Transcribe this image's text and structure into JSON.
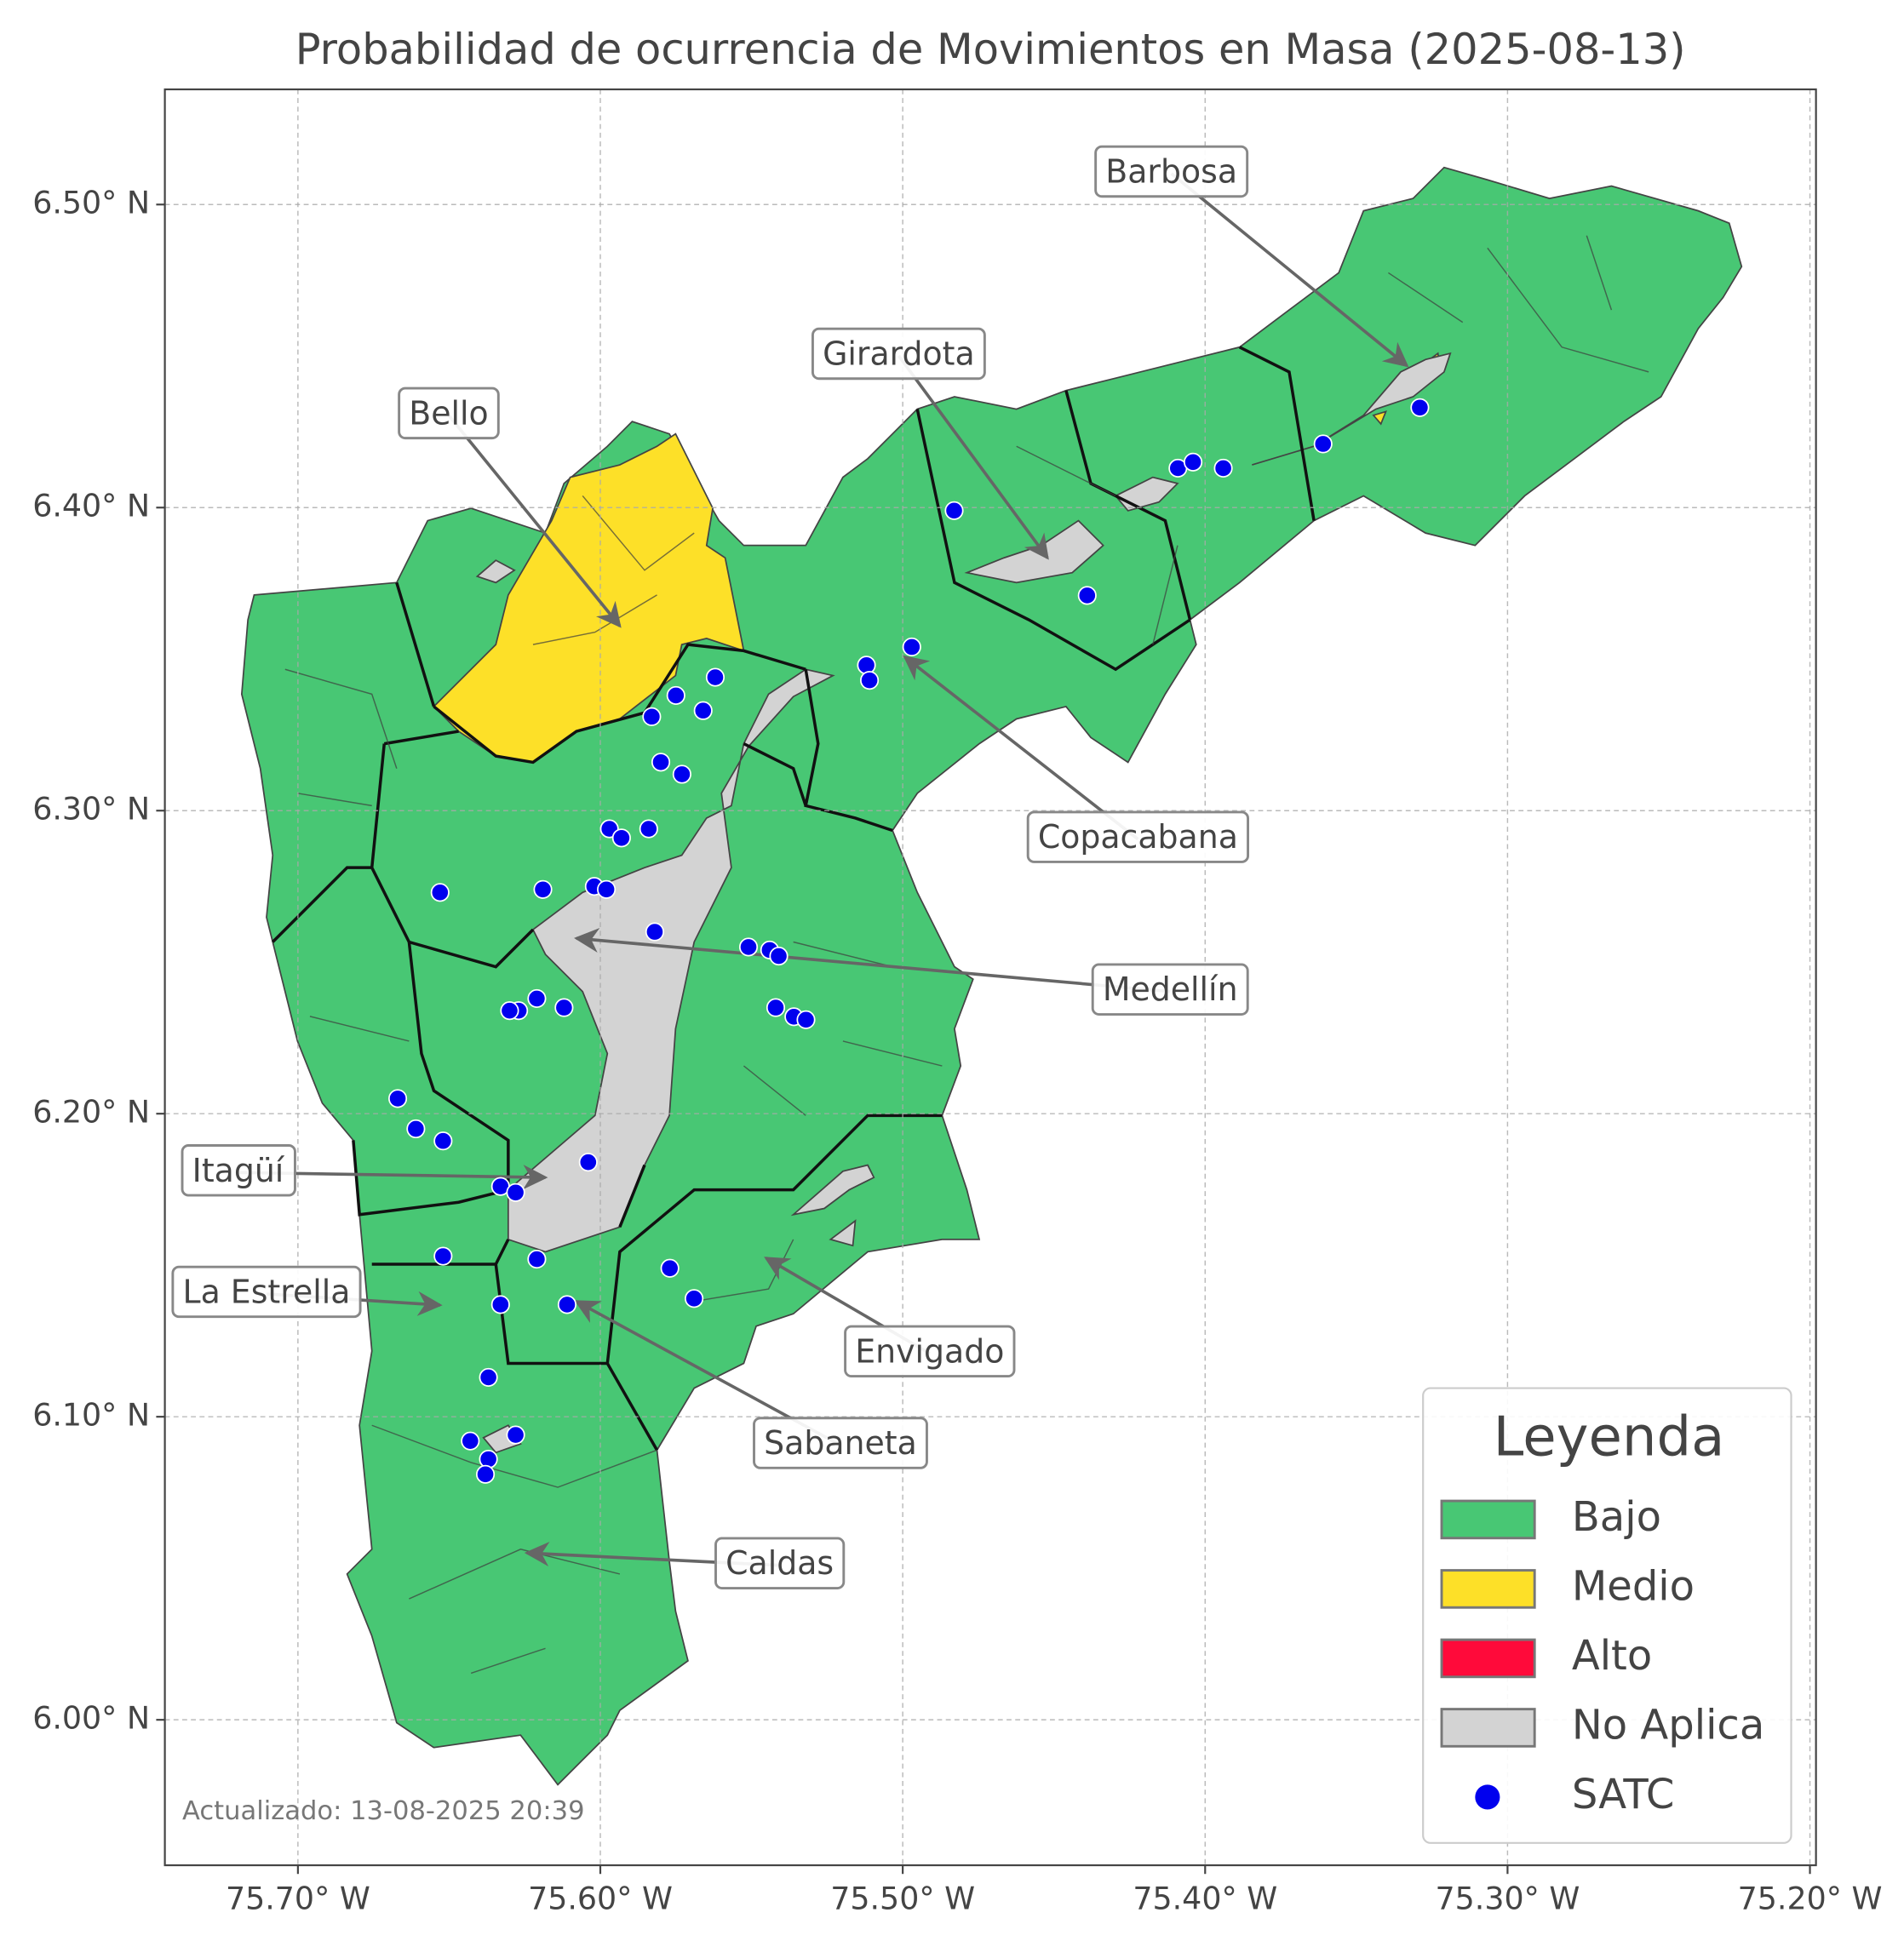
{
  "chart_data": {
    "type": "map",
    "title": "Probabilidad de ocurrencia de Movimientos en Masa (2025-08-13)",
    "xlim": [
      -75.744,
      -75.198
    ],
    "ylim": [
      5.952,
      6.538
    ],
    "xticks": [
      {
        "value": -75.7,
        "label": "75.70° W"
      },
      {
        "value": -75.6,
        "label": "75.60° W"
      },
      {
        "value": -75.5,
        "label": "75.50° W"
      },
      {
        "value": -75.4,
        "label": "75.40° W"
      },
      {
        "value": -75.3,
        "label": "75.30° W"
      },
      {
        "value": -75.2,
        "label": "75.20° W"
      }
    ],
    "yticks": [
      {
        "value": 6.0,
        "label": "6.00° N"
      },
      {
        "value": 6.1,
        "label": "6.10° N"
      },
      {
        "value": 6.2,
        "label": "6.20° N"
      },
      {
        "value": 6.3,
        "label": "6.30° N"
      },
      {
        "value": 6.4,
        "label": "6.40° N"
      },
      {
        "value": 6.5,
        "label": "6.50° N"
      }
    ],
    "grid": true,
    "legend": {
      "title": "Leyenda",
      "position": "lower right",
      "items": [
        {
          "name": "Bajo",
          "color": "#48c774"
        },
        {
          "name": "Medio",
          "color": "#fde028"
        },
        {
          "name": "Alto",
          "color": "#ff0a3a"
        },
        {
          "name": "No Aplica",
          "color": "#d3d3d3"
        }
      ]
    },
    "series": [
      {
        "name": "SATC",
        "color": "#0000ee",
        "x": [
          -75.483,
          -75.439,
          -75.409,
          -75.404,
          -75.394,
          -75.361,
          -75.329,
          -75.512,
          -75.511,
          -75.497,
          -75.562,
          -75.575,
          -75.566,
          -75.583,
          -75.58,
          -75.573,
          -75.597,
          -75.593,
          -75.584,
          -75.653,
          -75.619,
          -75.602,
          -75.598,
          -75.582,
          -75.551,
          -75.544,
          -75.541,
          -75.542,
          -75.536,
          -75.532,
          -75.621,
          -75.627,
          -75.63,
          -75.612,
          -75.667,
          -75.661,
          -75.652,
          -75.604,
          -75.633,
          -75.628,
          -75.652,
          -75.621,
          -75.577,
          -75.569,
          -75.633,
          -75.611,
          -75.637,
          -75.643,
          -75.628,
          -75.637,
          -75.638
        ],
        "values": [
          6.399,
          6.371,
          6.413,
          6.415,
          6.413,
          6.421,
          6.433,
          6.348,
          6.343,
          6.354,
          6.344,
          6.338,
          6.333,
          6.331,
          6.316,
          6.312,
          6.294,
          6.291,
          6.294,
          6.273,
          6.274,
          6.275,
          6.274,
          6.26,
          6.255,
          6.254,
          6.252,
          6.235,
          6.232,
          6.231,
          6.238,
          6.234,
          6.234,
          6.235,
          6.205,
          6.195,
          6.191,
          6.184,
          6.176,
          6.174,
          6.153,
          6.152,
          6.149,
          6.139,
          6.137,
          6.137,
          6.113,
          6.092,
          6.094,
          6.086,
          6.081
        ]
      }
    ],
    "annotations": [
      "Barbosa",
      "Girardota",
      "Bello",
      "Copacabana",
      "Medellín",
      "Itagüí",
      "La Estrella",
      "Envigado",
      "Sabaneta",
      "Caldas"
    ],
    "footnote": "Actualizado: 13-08-2025 20:39"
  }
}
